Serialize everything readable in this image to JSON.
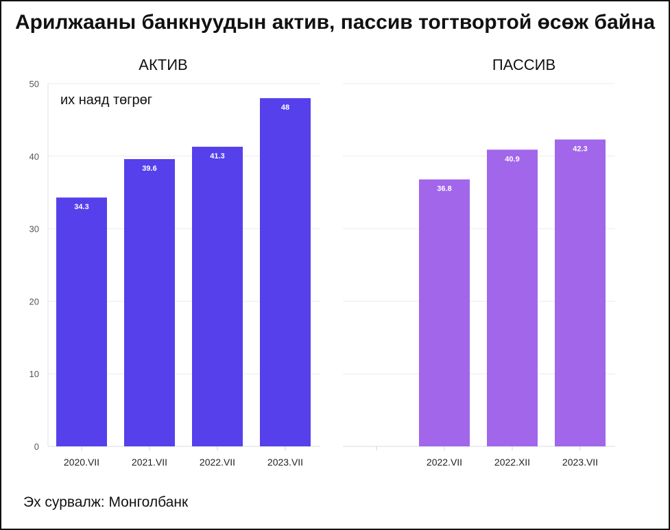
{
  "title": "Арилжааны банкнуудын актив, пассив тогтвортой өсөж байна",
  "source": "Эх сурвалж: Монголбанк",
  "unit_label": "их наяд төгрөг",
  "colors": {
    "aktiv": "#5540eb",
    "passiv": "#a166ea"
  },
  "chart_data": [
    {
      "type": "bar",
      "title": "АКТИВ",
      "ylabel": "их наяд төгрөг",
      "xlabel": "",
      "ylim": [
        0,
        50
      ],
      "yticks": [
        0,
        10,
        20,
        30,
        40,
        50
      ],
      "categories": [
        "2020.VII",
        "2021.VII",
        "2022.VII",
        "2023.VII"
      ],
      "values": [
        34.3,
        39.6,
        41.3,
        48
      ],
      "labels": [
        "34.3",
        "39.6",
        "41.3",
        "48"
      ],
      "grid": true
    },
    {
      "type": "bar",
      "title": "ПАССИВ",
      "ylabel": "их наяд төгрөг",
      "xlabel": "",
      "ylim": [
        0,
        50
      ],
      "categories": [
        "",
        "2022.VII",
        "2022.XII",
        "2023.VII"
      ],
      "values": [
        null,
        36.8,
        40.9,
        42.3
      ],
      "labels": [
        "",
        "36.8",
        "40.9",
        "42.3"
      ],
      "grid": true
    }
  ]
}
